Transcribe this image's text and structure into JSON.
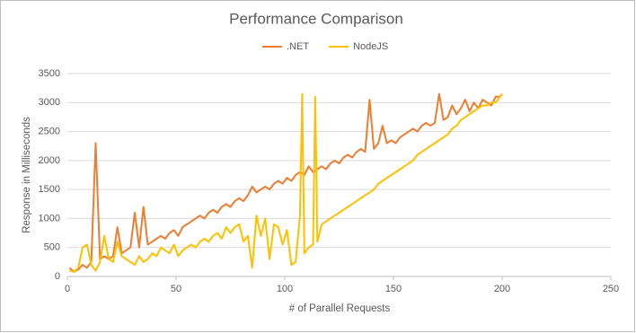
{
  "chart_data": {
    "type": "line",
    "title": "Performance Comparison",
    "x_label": "# of Parallel Requests",
    "y_label": "Response in Milliseconds",
    "x": [
      1,
      3,
      5,
      7,
      9,
      11,
      13,
      15,
      17,
      19,
      21,
      23,
      25,
      27,
      29,
      31,
      33,
      35,
      37,
      39,
      41,
      43,
      45,
      47,
      49,
      51,
      53,
      55,
      57,
      59,
      61,
      63,
      65,
      67,
      69,
      71,
      73,
      75,
      77,
      79,
      81,
      83,
      85,
      87,
      89,
      91,
      93,
      95,
      97,
      99,
      101,
      103,
      105,
      107,
      108,
      109,
      111,
      113,
      114,
      115,
      117,
      119,
      121,
      123,
      125,
      127,
      129,
      131,
      133,
      135,
      137,
      139,
      141,
      143,
      145,
      147,
      149,
      151,
      153,
      155,
      157,
      159,
      161,
      163,
      165,
      167,
      169,
      171,
      173,
      175,
      177,
      179,
      181,
      183,
      185,
      187,
      189,
      191,
      193,
      195,
      197,
      199,
      200
    ],
    "series": [
      {
        "name": ".NET",
        "color": "#ed7d31",
        "values": [
          150,
          80,
          120,
          200,
          150,
          250,
          2300,
          300,
          350,
          300,
          350,
          850,
          400,
          450,
          500,
          1100,
          500,
          1200,
          550,
          600,
          650,
          700,
          650,
          750,
          800,
          700,
          850,
          900,
          950,
          1000,
          1050,
          1000,
          1100,
          1150,
          1100,
          1200,
          1250,
          1200,
          1300,
          1350,
          1300,
          1400,
          1550,
          1450,
          1500,
          1550,
          1500,
          1600,
          1650,
          1600,
          1700,
          1650,
          1750,
          1800,
          1780,
          1750,
          1900,
          1800,
          1820,
          1850,
          1900,
          1850,
          1950,
          2000,
          1950,
          2050,
          2100,
          2050,
          2150,
          2200,
          2150,
          3050,
          2200,
          2300,
          2600,
          2300,
          2350,
          2300,
          2400,
          2450,
          2500,
          2550,
          2500,
          2600,
          2650,
          2600,
          2650,
          3150,
          2700,
          2750,
          2950,
          2800,
          2900,
          3050,
          2850,
          3000,
          2900,
          3050,
          3000,
          2950,
          3100,
          3100,
          3150
        ]
      },
      {
        "name": "NodeJS",
        "color": "#ffc000",
        "values": [
          100,
          80,
          150,
          500,
          550,
          200,
          100,
          250,
          700,
          300,
          250,
          600,
          350,
          300,
          250,
          200,
          350,
          250,
          300,
          400,
          350,
          500,
          450,
          400,
          550,
          350,
          450,
          500,
          550,
          500,
          600,
          650,
          600,
          700,
          750,
          650,
          850,
          750,
          850,
          900,
          600,
          700,
          150,
          1050,
          700,
          1000,
          300,
          900,
          850,
          550,
          800,
          200,
          250,
          1050,
          3150,
          400,
          500,
          550,
          3100,
          600,
          900,
          950,
          1000,
          1050,
          1100,
          1150,
          1200,
          1250,
          1300,
          1350,
          1400,
          1450,
          1500,
          1600,
          1650,
          1700,
          1750,
          1800,
          1850,
          1900,
          1950,
          2000,
          2100,
          2150,
          2200,
          2250,
          2300,
          2350,
          2400,
          2450,
          2550,
          2600,
          2700,
          2750,
          2800,
          2850,
          2900,
          2950,
          2950,
          3000,
          3000,
          3100,
          3150
        ]
      }
    ],
    "xlim": [
      0,
      250
    ],
    "xticks": [
      0,
      50,
      100,
      150,
      200,
      250
    ],
    "ylim": [
      0,
      3500
    ],
    "yticks": [
      0,
      500,
      1000,
      1500,
      2000,
      2500,
      3000,
      3500
    ],
    "grid": true,
    "legend": "top"
  }
}
